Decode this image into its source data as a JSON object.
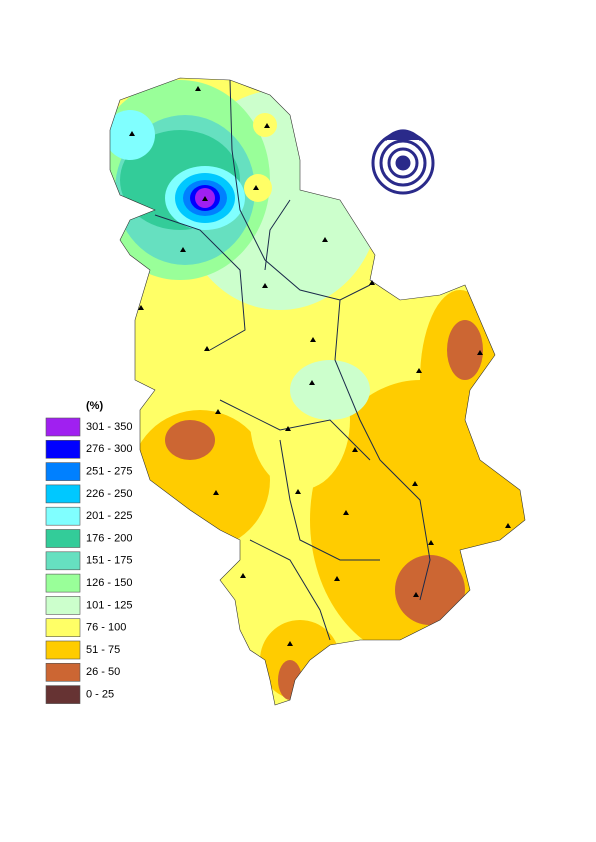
{
  "legend": {
    "title": "(%)",
    "classes": [
      {
        "label": "301 - 350",
        "color": "#a020f0"
      },
      {
        "label": "276 - 300",
        "color": "#0000ff"
      },
      {
        "label": "251 - 275",
        "color": "#0080ff"
      },
      {
        "label": "226 - 250",
        "color": "#00c8ff"
      },
      {
        "label": "201 - 225",
        "color": "#80ffff"
      },
      {
        "label": "176 - 200",
        "color": "#33cc99"
      },
      {
        "label": "151 - 175",
        "color": "#66e0c0"
      },
      {
        "label": "126 - 150",
        "color": "#99ff99"
      },
      {
        "label": "101 - 125",
        "color": "#ccffcc"
      },
      {
        "label": "76 - 100",
        "color": "#ffff66"
      },
      {
        "label": "51 - 75",
        "color": "#ffcc00"
      },
      {
        "label": "26 - 50",
        "color": "#cc6633"
      },
      {
        "label": "0 - 25",
        "color": "#663333"
      }
    ]
  }
}
